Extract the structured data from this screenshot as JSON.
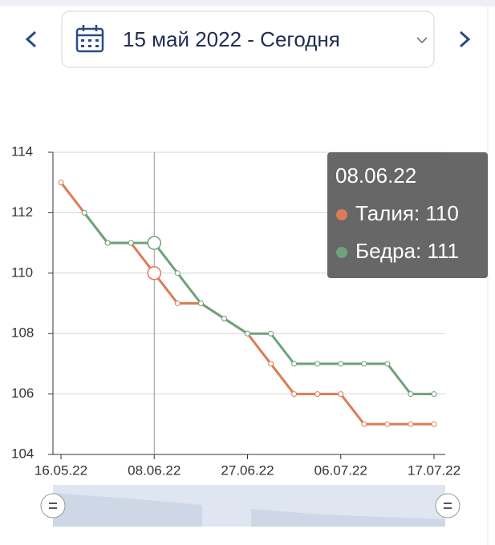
{
  "header": {
    "period": "15 май 2022 - Сегодня"
  },
  "chart_data": {
    "type": "line",
    "categories": [
      "16.05.22",
      null,
      null,
      null,
      "08.06.22",
      null,
      null,
      null,
      "27.06.22",
      null,
      null,
      null,
      "06.07.22",
      null,
      null,
      null,
      "17.07.22"
    ],
    "series": [
      {
        "name": "Талия",
        "color": "#de7b57",
        "values": [
          113,
          112,
          111,
          111,
          110,
          109,
          109,
          108.5,
          108,
          107,
          106,
          106,
          106,
          105,
          105,
          105,
          105
        ]
      },
      {
        "name": "Бедра",
        "color": "#6da37a",
        "values": [
          null,
          112,
          111,
          111,
          111,
          110,
          109,
          108.5,
          108,
          108,
          107,
          107,
          107,
          107,
          107,
          106,
          106
        ]
      }
    ],
    "ylim": [
      104,
      114
    ],
    "yticks": [
      104,
      106,
      108,
      110,
      112,
      114
    ],
    "grid": true,
    "tooltip": {
      "title": "08.06.22",
      "lines": [
        "Талия: 110",
        "Бедра: 111"
      ]
    }
  }
}
